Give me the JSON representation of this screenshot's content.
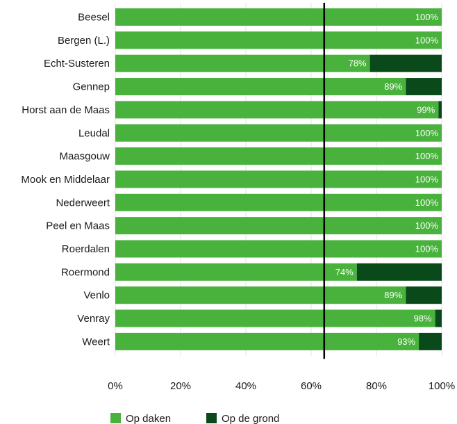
{
  "chart_data": {
    "type": "bar",
    "orientation": "horizontal",
    "stacked": true,
    "categories": [
      "Beesel",
      "Bergen (L.)",
      "Echt-Susteren",
      "Gennep",
      "Horst aan de Maas",
      "Leudal",
      "Maasgouw",
      "Mook en Middelaar",
      "Nederweert",
      "Peel en Maas",
      "Roerdalen",
      "Roermond",
      "Venlo",
      "Venray",
      "Weert"
    ],
    "series": [
      {
        "name": "Op daken",
        "color": "#48b23c",
        "values": [
          100,
          100,
          78,
          89,
          99,
          100,
          100,
          100,
          100,
          100,
          100,
          74,
          89,
          98,
          93
        ],
        "labels": [
          "100%",
          "100%",
          "78%",
          "89%",
          "99%",
          "100%",
          "100%",
          "100%",
          "100%",
          "100%",
          "100%",
          "74%",
          "89%",
          "98%",
          "93%"
        ]
      },
      {
        "name": "Op de grond",
        "color": "#0a4a1a",
        "values": [
          0,
          0,
          22,
          11,
          1,
          0,
          0,
          0,
          0,
          0,
          0,
          26,
          11,
          2,
          7
        ]
      }
    ],
    "xlim": [
      0,
      100
    ],
    "xticks": [
      0,
      20,
      40,
      60,
      80,
      100
    ],
    "xtick_labels": [
      "0%",
      "20%",
      "40%",
      "60%",
      "80%",
      "100%"
    ],
    "reference_line": 64,
    "grid": true,
    "legend": "bottom-left"
  }
}
